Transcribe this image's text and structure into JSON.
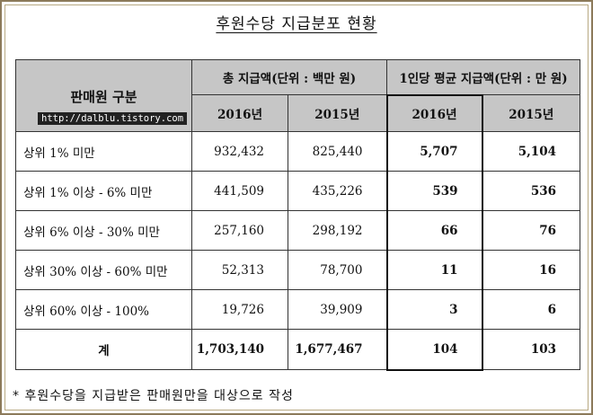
{
  "title": "후원수당 지급분포 현황",
  "watermark": "http://dalblu.tistory.com",
  "headers": {
    "category": "판매원 구분",
    "group_total": "총 지급액(단위 : 백만 원)",
    "group_avg": "1인당 평균 지급액(단위 : 만 원)",
    "year_2016": "2016년",
    "year_2015": "2015년"
  },
  "rows": [
    {
      "category": "상위 1% 미만",
      "total_2016": "932,432",
      "total_2015": "825,440",
      "avg_2016": "5,707",
      "avg_2015": "5,104"
    },
    {
      "category": "상위 1% 이상 - 6% 미만",
      "total_2016": "441,509",
      "total_2015": "435,226",
      "avg_2016": "539",
      "avg_2015": "536"
    },
    {
      "category": "상위 6% 이상 - 30% 미만",
      "total_2016": "257,160",
      "total_2015": "298,192",
      "avg_2016": "66",
      "avg_2015": "76"
    },
    {
      "category": "상위 30% 이상 - 60% 미만",
      "total_2016": "52,313",
      "total_2015": "78,700",
      "avg_2016": "11",
      "avg_2015": "16"
    },
    {
      "category": "상위 60% 이상 - 100%",
      "total_2016": "19,726",
      "total_2015": "39,909",
      "avg_2016": "3",
      "avg_2015": "6"
    }
  ],
  "total_row": {
    "category": "계",
    "total_2016": "1,703,140",
    "total_2015": "1,677,467",
    "avg_2016": "104",
    "avg_2015": "103"
  },
  "footnote": "* 후원수당을 지급받은 판매원만을 대상으로 작성"
}
